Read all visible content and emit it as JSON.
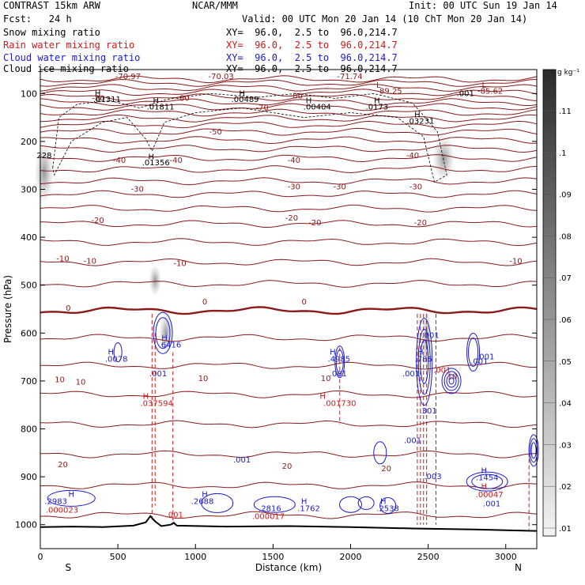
{
  "header": {
    "left_line1": "CONTRAST 15km ARW",
    "center_line1": "NCAR/MMM",
    "right_line1": "Init: 00 UTC Sun 19 Jan 14",
    "left_line2": "Fcst:   24 h",
    "right_line2": "Valid: 00 UTC Mon 20 Jan 14 (10 ChT Mon 20 Jan 14)"
  },
  "fields": [
    {
      "name": "Snow mixing ratio",
      "xy": "XY=  96.0,  2.5 to  96.0,214.7",
      "color": "#000000"
    },
    {
      "name": "Rain water mixing ratio",
      "xy": "XY=  96.0,  2.5 to  96.0,214.7",
      "color": "#d01818"
    },
    {
      "name": "Cloud water mixing ratio",
      "xy": "XY=  96.0,  2.5 to  96.0,214.7",
      "color": "#1a1ad0"
    },
    {
      "name": "Cloud ice mixing ratio",
      "xy": "XY=  96.0,  2.5 to  96.0,214.7",
      "color": "#000000"
    }
  ],
  "colorbar": {
    "unit": "g kg⁻¹",
    "tick_labels": [
      ".11",
      ".1",
      ".09",
      ".08",
      ".07",
      ".06",
      ".05",
      ".04",
      ".03",
      ".02",
      ".01"
    ]
  },
  "chart_data": {
    "type": "cross-section contour",
    "xlabel": "Distance (km)",
    "ylabel": "Pressure (hPa)",
    "xlim": [
      0,
      3200
    ],
    "ylim": [
      1050,
      50
    ],
    "x_ticks": [
      "0",
      "500",
      "1000",
      "1500",
      "2000",
      "2500",
      "3000"
    ],
    "x_tick_values": [
      0,
      500,
      1000,
      1500,
      2000,
      2500,
      3000
    ],
    "y_ticks": [
      "100",
      "200",
      "300",
      "400",
      "500",
      "600",
      "700",
      "800",
      "900",
      "1000"
    ],
    "y_tick_values": [
      100,
      200,
      300,
      400,
      500,
      600,
      700,
      800,
      900,
      1000
    ],
    "end_labels": {
      "left": "S",
      "right": "N"
    },
    "temperature_contours": [
      {
        "label": "-70.97",
        "x": 565,
        "p": 70
      },
      {
        "label": "-70.03",
        "x": 1165,
        "p": 70
      },
      {
        "label": "-71.74",
        "x": 1995,
        "p": 70
      },
      {
        "label": "-85.62",
        "x": 2900,
        "p": 100
      },
      {
        "label": "-89.25",
        "x": 2250,
        "p": 100
      },
      {
        "label": "-80",
        "x": 375,
        "p": 115
      },
      {
        "label": "-80",
        "x": 920,
        "p": 115
      },
      {
        "label": "-80",
        "x": 1650,
        "p": 110
      },
      {
        "label": "-70",
        "x": 1430,
        "p": 135
      },
      {
        "label": "-50",
        "x": 1130,
        "p": 185
      },
      {
        "label": "-40",
        "x": 510,
        "p": 245
      },
      {
        "label": "-40",
        "x": 875,
        "p": 245
      },
      {
        "label": "-40",
        "x": 1635,
        "p": 245
      },
      {
        "label": "-40",
        "x": 2400,
        "p": 235
      },
      {
        "label": "-30",
        "x": 625,
        "p": 305
      },
      {
        "label": "-30",
        "x": 1635,
        "p": 300
      },
      {
        "label": "-30",
        "x": 1930,
        "p": 300
      },
      {
        "label": "-30",
        "x": 2420,
        "p": 300
      },
      {
        "label": "-20",
        "x": 370,
        "p": 370
      },
      {
        "label": "-20",
        "x": 1620,
        "p": 365
      },
      {
        "label": "-20",
        "x": 1770,
        "p": 375
      },
      {
        "label": "-20",
        "x": 2450,
        "p": 375
      },
      {
        "label": "-10",
        "x": 145,
        "p": 450
      },
      {
        "label": "-10",
        "x": 320,
        "p": 455
      },
      {
        "label": "-10",
        "x": 900,
        "p": 460
      },
      {
        "label": "-10",
        "x": 3065,
        "p": 455
      },
      {
        "label": "0",
        "x": 180,
        "p": 553
      },
      {
        "label": "0",
        "x": 1060,
        "p": 540
      },
      {
        "label": "0",
        "x": 1700,
        "p": 540
      },
      {
        "label": "10",
        "x": 125,
        "p": 703
      },
      {
        "label": "10",
        "x": 260,
        "p": 708
      },
      {
        "label": "10",
        "x": 1050,
        "p": 700
      },
      {
        "label": "10",
        "x": 1840,
        "p": 700
      },
      {
        "label": "10",
        "x": 2655,
        "p": 696
      },
      {
        "label": "20",
        "x": 145,
        "p": 880
      },
      {
        "label": "20",
        "x": 1590,
        "p": 883
      },
      {
        "label": "20",
        "x": 2230,
        "p": 888
      }
    ],
    "cloud_ice_maxima": [
      {
        "label": ".01311",
        "x": 430,
        "p": 118
      },
      {
        "label": ".01811",
        "x": 775,
        "p": 133
      },
      {
        "label": ".00489",
        "x": 1320,
        "p": 118
      },
      {
        "label": ".00404",
        "x": 1785,
        "p": 133
      },
      {
        "label": ".0173",
        "x": 2170,
        "p": 133
      },
      {
        "label": ".03231",
        "x": 2450,
        "p": 163
      },
      {
        "label": ".01356",
        "x": 745,
        "p": 250
      },
      {
        "label": ".001",
        "x": 2740,
        "p": 105
      },
      {
        "label": "228",
        "x": 25,
        "p": 235
      }
    ],
    "cloud_water_maxima": [
      {
        "label": ".6416",
        "x": 835,
        "p": 630
      },
      {
        "label": ".0078",
        "x": 490,
        "p": 660
      },
      {
        "label": ".4985",
        "x": 1925,
        "p": 660
      },
      {
        "label": ".786",
        "x": 2470,
        "p": 660
      },
      {
        "label": ".2983",
        "x": 100,
        "p": 957
      },
      {
        "label": ".2688",
        "x": 1045,
        "p": 957
      },
      {
        "label": ".2816",
        "x": 1480,
        "p": 972
      },
      {
        "label": ".1762",
        "x": 1730,
        "p": 972
      },
      {
        "label": ".2538",
        "x": 2240,
        "p": 972
      },
      {
        "label": ".1454",
        "x": 2880,
        "p": 907
      },
      {
        "label": ".001",
        "x": 760,
        "p": 690
      },
      {
        "label": ".001",
        "x": 1920,
        "p": 690
      },
      {
        "label": ".001",
        "x": 2515,
        "p": 610
      },
      {
        "label": ".001",
        "x": 2390,
        "p": 690
      },
      {
        "label": ".001",
        "x": 2400,
        "p": 830
      },
      {
        "label": ".001",
        "x": 1300,
        "p": 870
      },
      {
        "label": ".001",
        "x": 2910,
        "p": 962
      },
      {
        "label": ".001",
        "x": 2830,
        "p": 665
      },
      {
        "label": ".001",
        "x": 2870,
        "p": 655
      },
      {
        "label": ".003",
        "x": 2530,
        "p": 905
      },
      {
        "label": ".301",
        "x": 2500,
        "p": 768
      }
    ],
    "rain_maxima": [
      {
        "label": ".037594",
        "x": 750,
        "p": 752
      },
      {
        "label": ".001730",
        "x": 1930,
        "p": 752
      },
      {
        "label": ".000023",
        "x": 140,
        "p": 975
      },
      {
        "label": ".000017",
        "x": 1470,
        "p": 988
      },
      {
        "label": ".00047",
        "x": 2895,
        "p": 943
      },
      {
        "label": ".001",
        "x": 865,
        "p": 985
      },
      {
        "label": ".001",
        "x": 2590,
        "p": 683
      }
    ],
    "extrema_markers": [
      {
        "label": "H",
        "x": 370,
        "p": 105,
        "color": "#000000"
      },
      {
        "label": "H",
        "x": 745,
        "p": 120,
        "color": "#000000"
      },
      {
        "label": "H",
        "x": 1300,
        "p": 105,
        "color": "#000000"
      },
      {
        "label": "H",
        "x": 1730,
        "p": 120,
        "color": "#000000"
      },
      {
        "label": "H",
        "x": 2170,
        "p": 120,
        "color": "#000000"
      },
      {
        "label": "H",
        "x": 2430,
        "p": 150,
        "color": "#000000"
      },
      {
        "label": "H",
        "x": 715,
        "p": 237,
        "color": "#000000"
      },
      {
        "label": "L",
        "x": 2180,
        "p": 88,
        "color": "#8b1a1a"
      },
      {
        "label": "L",
        "x": 2860,
        "p": 88,
        "color": "#8b1a1a"
      },
      {
        "label": "H",
        "x": 800,
        "p": 615,
        "color": "#1a1ad0"
      },
      {
        "label": "H",
        "x": 455,
        "p": 645,
        "color": "#1a1ad0"
      },
      {
        "label": "H",
        "x": 1885,
        "p": 645,
        "color": "#1a1ad0"
      },
      {
        "label": "H",
        "x": 2450,
        "p": 645,
        "color": "#1a1ad0"
      },
      {
        "label": "H",
        "x": 200,
        "p": 942,
        "color": "#1a1ad0"
      },
      {
        "label": "H",
        "x": 1060,
        "p": 942,
        "color": "#1a1ad0"
      },
      {
        "label": "H",
        "x": 1700,
        "p": 957,
        "color": "#1a1ad0"
      },
      {
        "label": "H",
        "x": 2210,
        "p": 957,
        "color": "#1a1ad0"
      },
      {
        "label": "H",
        "x": 2860,
        "p": 892,
        "color": "#1a1ad0"
      },
      {
        "label": "H",
        "x": 680,
        "p": 737,
        "color": "#d01818"
      },
      {
        "label": "H",
        "x": 1820,
        "p": 737,
        "color": "#d01818"
      },
      {
        "label": "H",
        "x": 2860,
        "p": 925,
        "color": "#d01818"
      }
    ],
    "terrain": [
      {
        "x": 0,
        "p": 1005
      },
      {
        "x": 200,
        "p": 1004
      },
      {
        "x": 400,
        "p": 1005
      },
      {
        "x": 600,
        "p": 1002
      },
      {
        "x": 680,
        "p": 995
      },
      {
        "x": 710,
        "p": 982
      },
      {
        "x": 740,
        "p": 993
      },
      {
        "x": 780,
        "p": 1003
      },
      {
        "x": 840,
        "p": 1000
      },
      {
        "x": 860,
        "p": 996
      },
      {
        "x": 880,
        "p": 1002
      },
      {
        "x": 1200,
        "p": 1004
      },
      {
        "x": 1600,
        "p": 1003
      },
      {
        "x": 2000,
        "p": 1005
      },
      {
        "x": 2400,
        "p": 1008
      },
      {
        "x": 2800,
        "p": 1010
      },
      {
        "x": 3200,
        "p": 1013
      }
    ]
  }
}
